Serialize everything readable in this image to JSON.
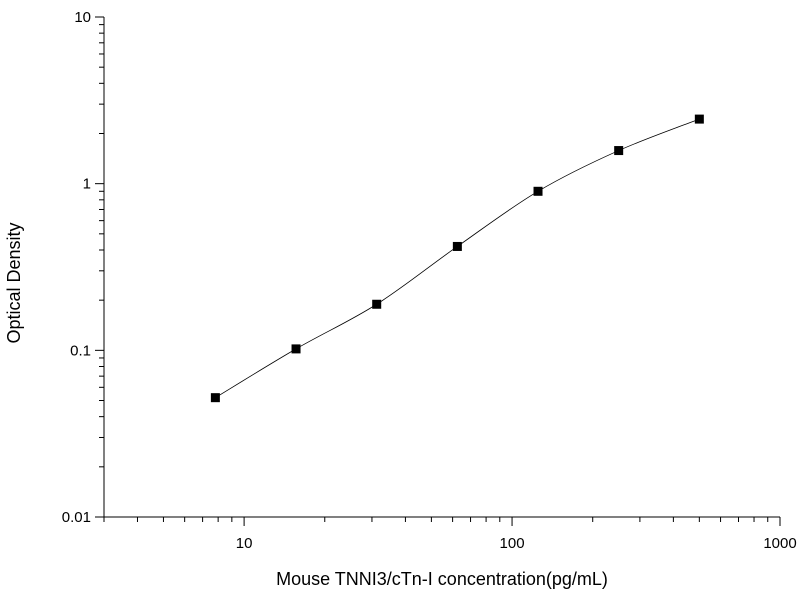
{
  "chart_data": {
    "type": "scatter",
    "title": "",
    "xlabel": "Mouse TNNI3/cTn-I concentration(pg/mL)",
    "ylabel": "Optical Density",
    "xscale": "log",
    "yscale": "log",
    "xlim": [
      3,
      1000
    ],
    "ylim": [
      0.01,
      10
    ],
    "xticks": [
      {
        "v": 10,
        "label": "10"
      },
      {
        "v": 100,
        "label": "100"
      },
      {
        "v": 1000,
        "label": "1000"
      }
    ],
    "yticks": [
      {
        "v": 0.01,
        "label": "0.01"
      },
      {
        "v": 0.1,
        "label": "0.1"
      },
      {
        "v": 1,
        "label": "1"
      },
      {
        "v": 10,
        "label": "10"
      }
    ],
    "grid": false,
    "marker": "square",
    "fit_line": "smooth curve through points",
    "color": "#000000",
    "x": [
      7.8125,
      15.625,
      31.25,
      62.5,
      125,
      250,
      500
    ],
    "y": [
      0.052,
      0.102,
      0.189,
      0.42,
      0.9,
      1.58,
      2.44
    ]
  }
}
